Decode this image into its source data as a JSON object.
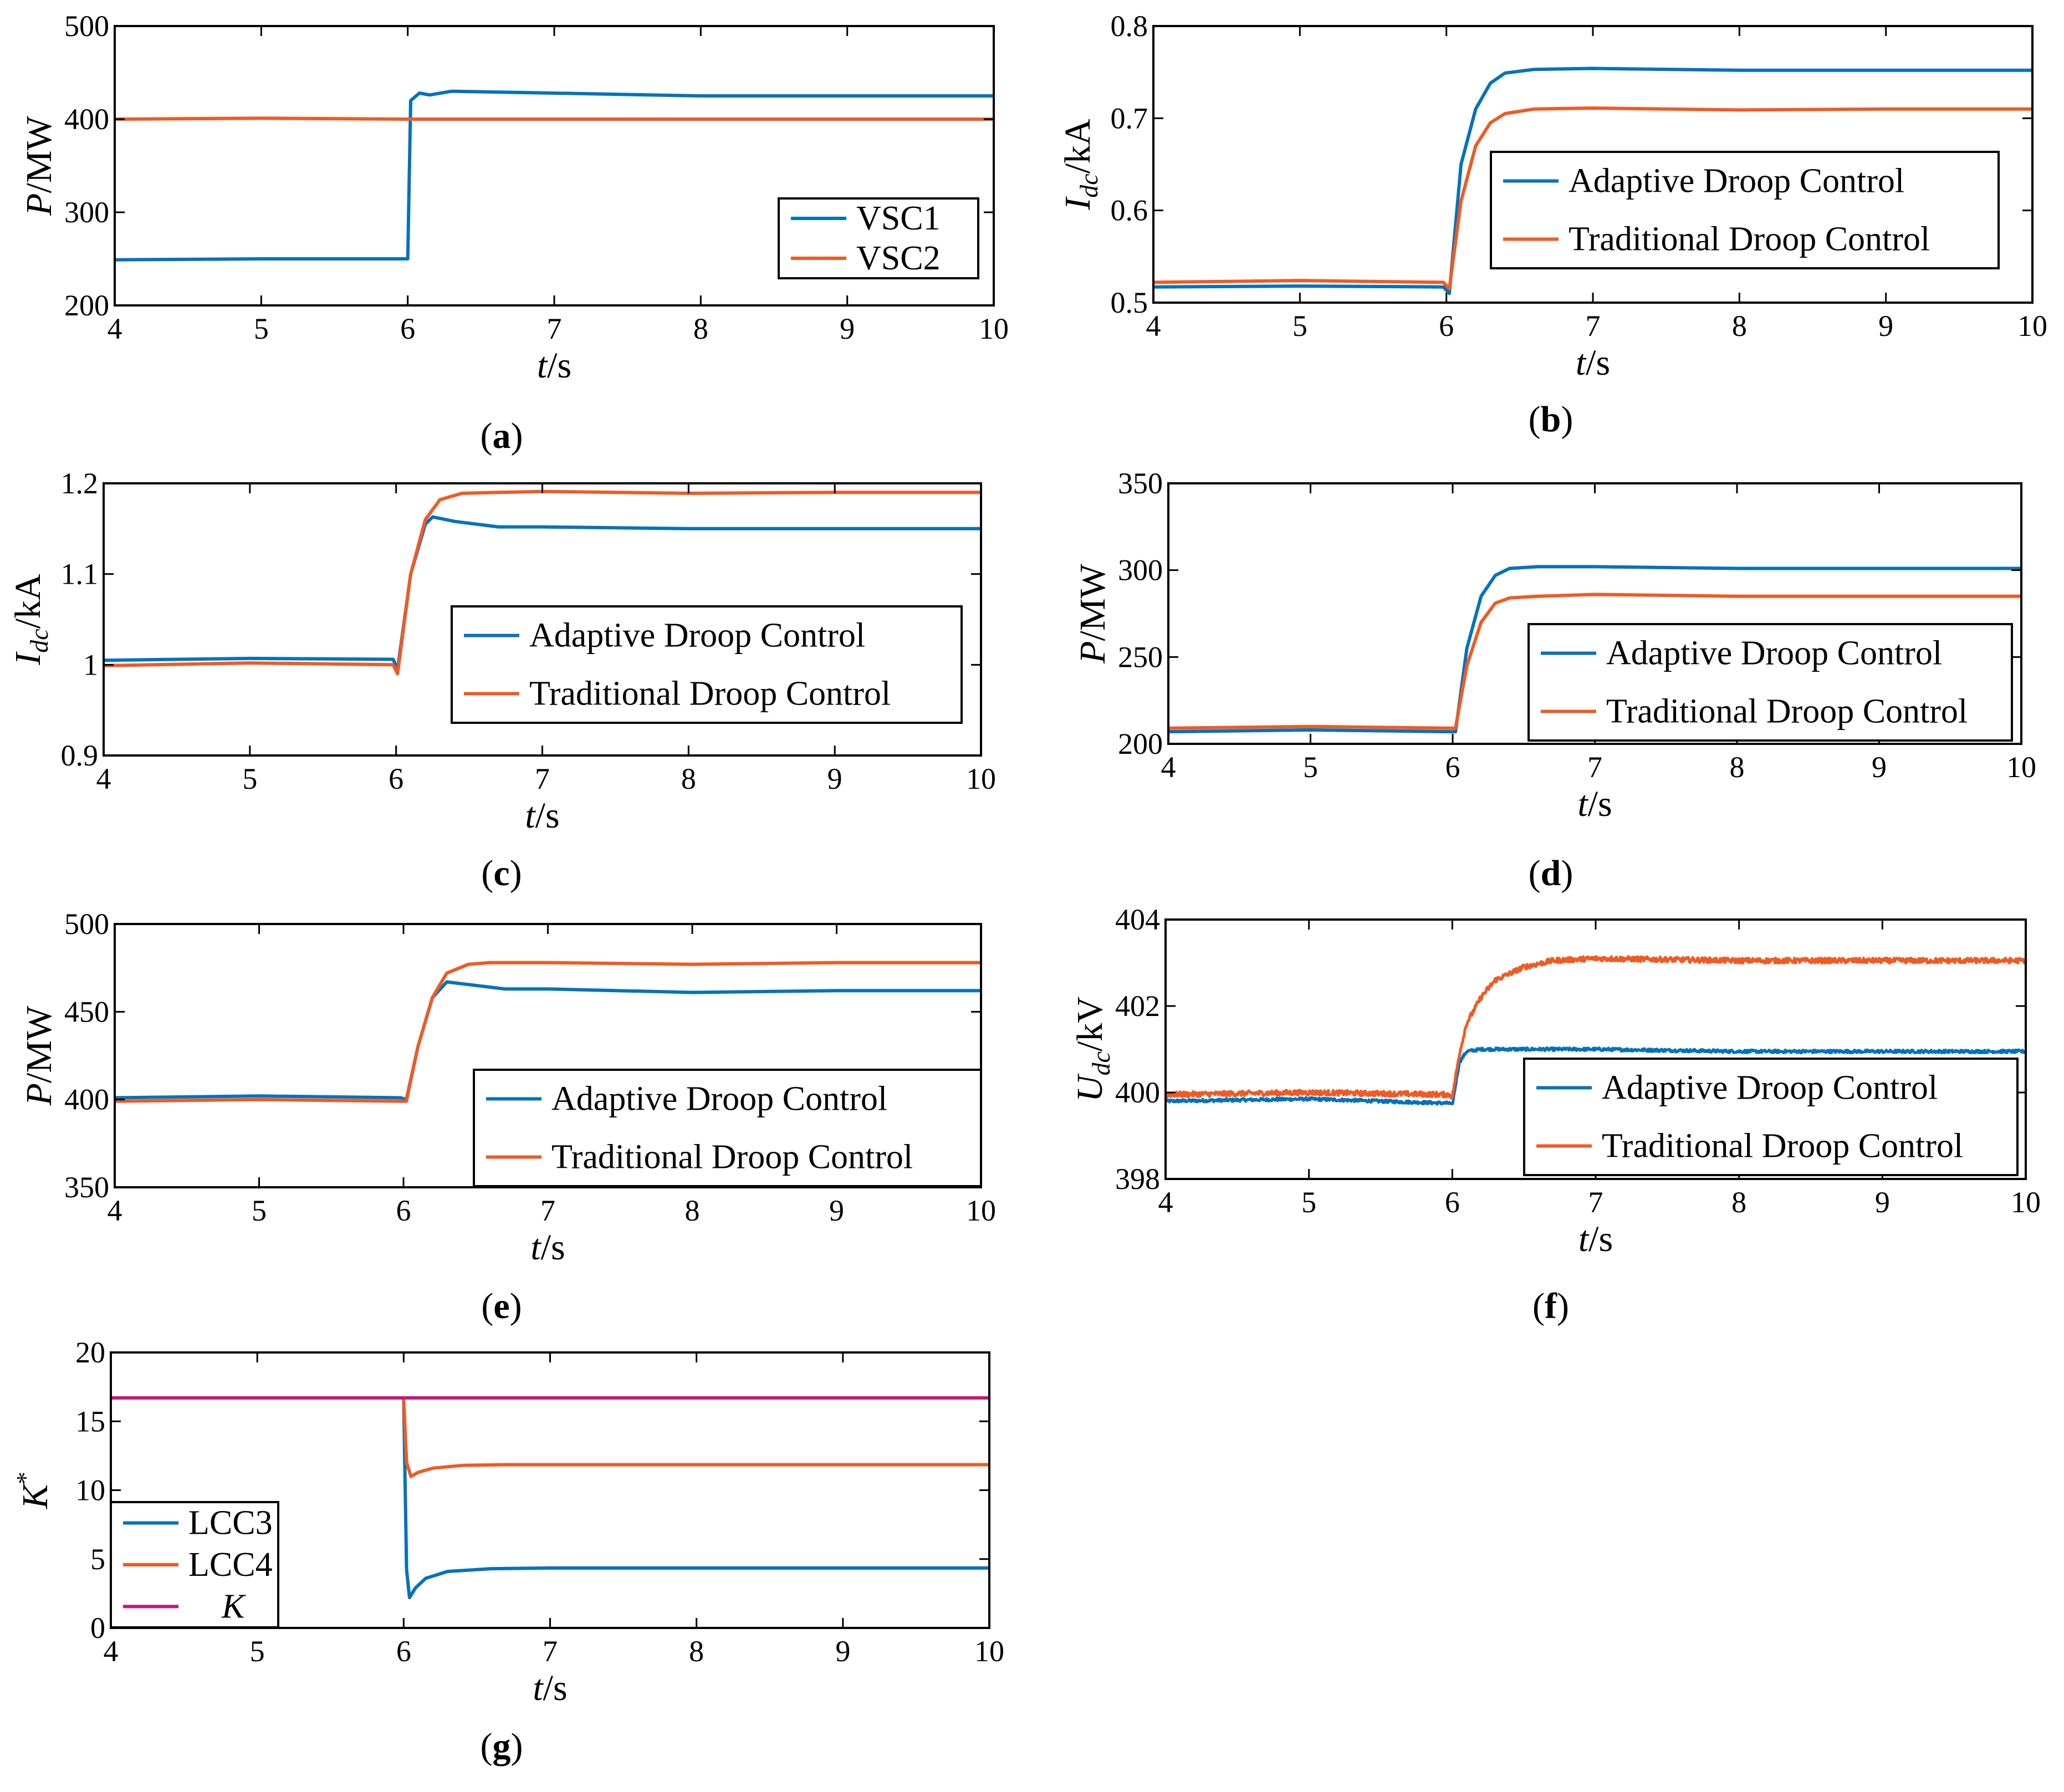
{
  "figure": {
    "colors": {
      "blue": "#0072BD",
      "orange": "#F15A22",
      "magenta": "#C2187A",
      "axis": "#000000"
    }
  },
  "chart_data": [
    {
      "id": "a",
      "type": "line",
      "caption_letter": "a",
      "xlabel": {
        "italic": "t",
        "rest": "/s"
      },
      "ylabel": {
        "italic": "P",
        "sub": "",
        "rest": "/MW"
      },
      "xlim": [
        4,
        10
      ],
      "ylim": [
        200,
        500
      ],
      "xticks": [
        4,
        5,
        6,
        7,
        8,
        9,
        10
      ],
      "yticks": [
        200,
        300,
        400,
        500
      ],
      "legend": {
        "placement": "lower-right"
      },
      "series": [
        {
          "name": "VSC1",
          "color": "blue",
          "x": [
            4,
            5,
            5.99,
            6.0,
            6.02,
            6.08,
            6.15,
            6.3,
            7,
            8,
            9,
            10
          ],
          "y": [
            249,
            250,
            250,
            250,
            420,
            428,
            426,
            430,
            428,
            425,
            425,
            425
          ]
        },
        {
          "name": "VSC2",
          "color": "orange",
          "x": [
            4,
            5,
            6,
            7,
            8,
            9,
            10
          ],
          "y": [
            400,
            401,
            400,
            400,
            400,
            400,
            400
          ]
        }
      ]
    },
    {
      "id": "b",
      "type": "line",
      "caption_letter": "b",
      "xlabel": {
        "italic": "t",
        "rest": "/s"
      },
      "ylabel": {
        "italic": "I",
        "sub": "dc",
        "rest": "/kA"
      },
      "xlim": [
        4,
        10
      ],
      "ylim": [
        0.5,
        0.8
      ],
      "xticks": [
        4,
        5,
        6,
        7,
        8,
        9,
        10
      ],
      "yticks": [
        0.5,
        0.6,
        0.7,
        0.8
      ],
      "legend": {
        "placement": "middle-right"
      },
      "series": [
        {
          "name": "Adaptive Droop Control",
          "color": "blue",
          "x": [
            4,
            5,
            5.98,
            6.02,
            6.1,
            6.2,
            6.3,
            6.4,
            6.6,
            7,
            8,
            9,
            10
          ],
          "y": [
            0.517,
            0.518,
            0.517,
            0.51,
            0.65,
            0.71,
            0.738,
            0.749,
            0.753,
            0.754,
            0.752,
            0.752,
            0.752
          ]
        },
        {
          "name": "Traditional Droop Control",
          "color": "orange",
          "x": [
            4,
            5,
            5.98,
            6.02,
            6.1,
            6.2,
            6.3,
            6.4,
            6.6,
            7,
            8,
            9,
            10
          ],
          "y": [
            0.522,
            0.524,
            0.522,
            0.515,
            0.61,
            0.67,
            0.695,
            0.705,
            0.71,
            0.711,
            0.709,
            0.71,
            0.71
          ]
        }
      ]
    },
    {
      "id": "c",
      "type": "line",
      "caption_letter": "c",
      "xlabel": {
        "italic": "t",
        "rest": "/s"
      },
      "ylabel": {
        "italic": "I",
        "sub": "dc",
        "rest": "/kA"
      },
      "xlim": [
        4,
        10
      ],
      "ylim": [
        0.9,
        1.2
      ],
      "xticks": [
        4,
        5,
        6,
        7,
        8,
        9,
        10
      ],
      "yticks": [
        0.9,
        1,
        1.1,
        1.2
      ],
      "ytick_labels": [
        "0.9",
        "1",
        "1.1",
        "1.2"
      ],
      "legend": {
        "placement": "lower-right"
      },
      "series": [
        {
          "name": "Adaptive Droop Control",
          "color": "blue",
          "x": [
            4,
            5,
            5.98,
            6.01,
            6.1,
            6.2,
            6.25,
            6.4,
            6.7,
            7,
            8,
            9,
            10
          ],
          "y": [
            1.005,
            1.007,
            1.006,
            0.995,
            1.1,
            1.155,
            1.163,
            1.158,
            1.152,
            1.152,
            1.15,
            1.15,
            1.15
          ]
        },
        {
          "name": "Traditional Droop Control",
          "color": "orange",
          "x": [
            4,
            5,
            5.98,
            6.01,
            6.1,
            6.2,
            6.3,
            6.45,
            6.7,
            7,
            8,
            9,
            10
          ],
          "y": [
            0.999,
            1.002,
            1.0,
            0.99,
            1.1,
            1.16,
            1.182,
            1.189,
            1.19,
            1.191,
            1.189,
            1.19,
            1.19
          ]
        }
      ]
    },
    {
      "id": "d",
      "type": "line",
      "caption_letter": "d",
      "xlabel": {
        "italic": "t",
        "rest": "/s"
      },
      "ylabel": {
        "italic": "P",
        "sub": "",
        "rest": "/MW"
      },
      "xlim": [
        4,
        10
      ],
      "ylim": [
        200,
        350
      ],
      "xticks": [
        4,
        5,
        6,
        7,
        8,
        9,
        10
      ],
      "yticks": [
        200,
        250,
        300,
        350
      ],
      "legend": {
        "placement": "lower-right"
      },
      "series": [
        {
          "name": "Adaptive Droop Control",
          "color": "blue",
          "x": [
            4,
            5,
            5.98,
            6.02,
            6.1,
            6.2,
            6.3,
            6.4,
            6.6,
            7,
            8,
            9,
            10
          ],
          "y": [
            207,
            208,
            207,
            207,
            255,
            285,
            297,
            301,
            302,
            302,
            301,
            301,
            301
          ]
        },
        {
          "name": "Traditional Droop Control",
          "color": "orange",
          "x": [
            4,
            5,
            5.98,
            6.02,
            6.1,
            6.2,
            6.3,
            6.4,
            6.6,
            7,
            8,
            9,
            10
          ],
          "y": [
            209,
            210,
            209,
            209,
            245,
            270,
            281,
            284,
            285,
            286,
            285,
            285,
            285
          ]
        }
      ]
    },
    {
      "id": "e",
      "type": "line",
      "caption_letter": "e",
      "xlabel": {
        "italic": "t",
        "rest": "/s"
      },
      "ylabel": {
        "italic": "P",
        "sub": "",
        "rest": "/MW"
      },
      "xlim": [
        4,
        10
      ],
      "ylim": [
        350,
        500
      ],
      "xticks": [
        4,
        5,
        6,
        7,
        8,
        9,
        10
      ],
      "yticks": [
        350,
        400,
        450,
        500
      ],
      "legend": {
        "placement": "lower-right"
      },
      "series": [
        {
          "name": "Adaptive Droop Control",
          "color": "blue",
          "x": [
            4,
            5,
            5.98,
            6.02,
            6.1,
            6.2,
            6.3,
            6.5,
            6.7,
            7,
            8,
            9,
            10
          ],
          "y": [
            401,
            402,
            401,
            400,
            430,
            458,
            467,
            465,
            463,
            463,
            461,
            462,
            462
          ]
        },
        {
          "name": "Traditional Droop Control",
          "color": "orange",
          "x": [
            4,
            5,
            5.98,
            6.02,
            6.1,
            6.2,
            6.3,
            6.45,
            6.6,
            7,
            8,
            9,
            10
          ],
          "y": [
            399,
            400,
            399,
            399,
            430,
            458,
            472,
            477,
            478,
            478,
            477,
            478,
            478
          ]
        }
      ]
    },
    {
      "id": "f",
      "type": "line",
      "caption_letter": "f",
      "xlabel": {
        "italic": "t",
        "rest": "/s"
      },
      "ylabel": {
        "italic": "U",
        "sub": "dc",
        "rest": "/kV"
      },
      "xlim": [
        4,
        10
      ],
      "ylim": [
        398,
        404
      ],
      "xticks": [
        4,
        5,
        6,
        7,
        8,
        9,
        10
      ],
      "yticks": [
        398,
        400,
        402,
        404
      ],
      "legend": {
        "placement": "lower-right"
      },
      "series": [
        {
          "name": "Adaptive Droop Control",
          "color": "blue",
          "noise": 0.07,
          "x": [
            4,
            5,
            5.98,
            6.0,
            6.05,
            6.1,
            6.2,
            6.4,
            7,
            8,
            9,
            10
          ],
          "y": [
            399.8,
            399.85,
            399.75,
            399.7,
            400.7,
            400.95,
            401.0,
            401.0,
            401.0,
            400.95,
            400.95,
            400.95
          ]
        },
        {
          "name": "Traditional Droop Control",
          "color": "orange",
          "noise": 0.12,
          "x": [
            4,
            5,
            5.98,
            6.0,
            6.05,
            6.1,
            6.2,
            6.3,
            6.5,
            6.7,
            7,
            8,
            9,
            10
          ],
          "y": [
            399.95,
            400.0,
            399.95,
            399.9,
            400.9,
            401.6,
            402.2,
            402.6,
            402.9,
            403.05,
            403.1,
            403.05,
            403.05,
            403.05
          ]
        }
      ]
    },
    {
      "id": "g",
      "type": "line",
      "caption_letter": "g",
      "xlabel": {
        "italic": "t",
        "rest": "/s"
      },
      "ylabel": {
        "italic": "K",
        "sub": "",
        "sup": "*",
        "rest": ""
      },
      "xlim": [
        4,
        10
      ],
      "ylim": [
        0,
        20
      ],
      "xticks": [
        4,
        5,
        6,
        7,
        8,
        9,
        10
      ],
      "yticks": [
        0,
        5,
        10,
        15,
        20
      ],
      "legend": {
        "placement": "lower-left"
      },
      "series": [
        {
          "name": "LCC3",
          "color": "blue",
          "x": [
            4,
            5.99,
            6.0,
            6.02,
            6.04,
            6.08,
            6.15,
            6.3,
            6.6,
            7,
            8,
            9,
            10
          ],
          "y": [
            16.7,
            16.7,
            16.7,
            4.2,
            2.2,
            2.9,
            3.6,
            4.1,
            4.3,
            4.35,
            4.35,
            4.35,
            4.35
          ]
        },
        {
          "name": "LCC4",
          "color": "orange",
          "x": [
            4,
            5.99,
            6.0,
            6.02,
            6.05,
            6.1,
            6.2,
            6.4,
            6.7,
            7,
            8,
            9,
            10
          ],
          "y": [
            16.7,
            16.7,
            16.7,
            12.0,
            11.0,
            11.3,
            11.6,
            11.8,
            11.85,
            11.85,
            11.85,
            11.85,
            11.85
          ]
        },
        {
          "name": "K",
          "color": "magenta",
          "italic": true,
          "x": [
            4,
            10
          ],
          "y": [
            16.7,
            16.7
          ]
        }
      ]
    }
  ]
}
